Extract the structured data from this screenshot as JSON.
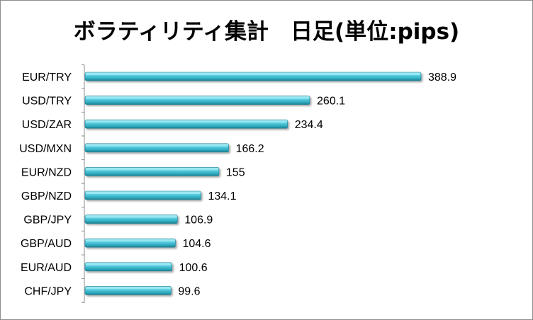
{
  "chart_data": {
    "type": "bar",
    "orientation": "horizontal",
    "title": "ボラティリティ集計　日足(単位:pips)",
    "categories": [
      "EUR/TRY",
      "USD/TRY",
      "USD/ZAR",
      "USD/MXN",
      "EUR/NZD",
      "GBP/NZD",
      "GBP/JPY",
      "GBP/AUD",
      "EUR/AUD",
      "CHF/JPY"
    ],
    "values": [
      388.9,
      260.1,
      234.4,
      166.2,
      155,
      134.1,
      106.9,
      104.6,
      100.6,
      99.6
    ],
    "value_labels": [
      "388.9",
      "260.1",
      "234.4",
      "166.2",
      "155",
      "134.1",
      "106.9",
      "104.6",
      "100.6",
      "99.6"
    ],
    "xlabel": "",
    "ylabel": "",
    "grid": false,
    "legend": "none",
    "bar_color": "#3fb8cc",
    "bar_highlight": "#a8ecf5",
    "bar_shadow": "#1d7f92"
  }
}
